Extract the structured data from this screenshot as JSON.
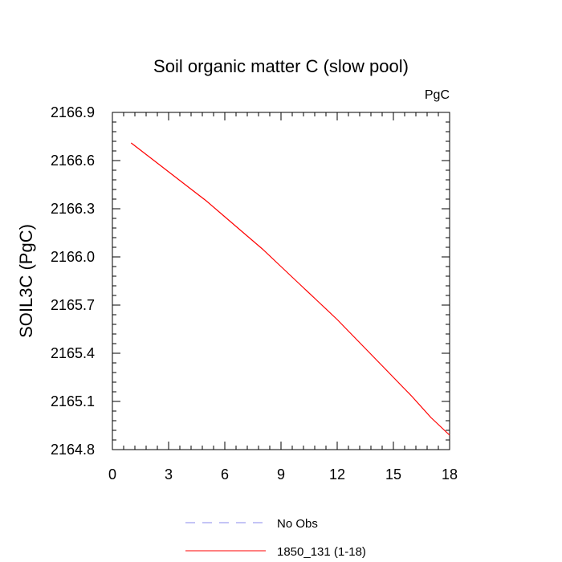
{
  "chart_data": {
    "type": "line",
    "title": "Soil organic matter C (slow pool)",
    "units_label": "PgC",
    "ylabel": "SOIL3C  (PgC)",
    "xlabel": "",
    "xlim": [
      0,
      18
    ],
    "ylim": [
      2164.8,
      2166.9
    ],
    "xticks": [
      "0",
      "3",
      "6",
      "9",
      "12",
      "15",
      "18"
    ],
    "yticks": [
      "2164.8",
      "2165.1",
      "2165.4",
      "2165.7",
      "2166.0",
      "2166.3",
      "2166.6",
      "2166.9"
    ],
    "series": [
      {
        "name": "1850_131 (1-18)",
        "color": "#ff0000",
        "style": "solid",
        "x": [
          1,
          2,
          3,
          4,
          5,
          6,
          7,
          8,
          9,
          10,
          11,
          12,
          13,
          14,
          15,
          16,
          17,
          18
        ],
        "y": [
          2166.71,
          2166.62,
          2166.53,
          2166.44,
          2166.35,
          2166.25,
          2166.15,
          2166.05,
          2165.94,
          2165.83,
          2165.72,
          2165.61,
          2165.49,
          2165.37,
          2165.25,
          2165.13,
          2165.0,
          2164.89
        ]
      }
    ],
    "legend": [
      {
        "label": "No Obs",
        "color": "#8888ee",
        "style": "dashed"
      },
      {
        "label": "1850_131 (1-18)",
        "color": "#ff0000",
        "style": "solid"
      }
    ],
    "legend_position": "bottom"
  }
}
